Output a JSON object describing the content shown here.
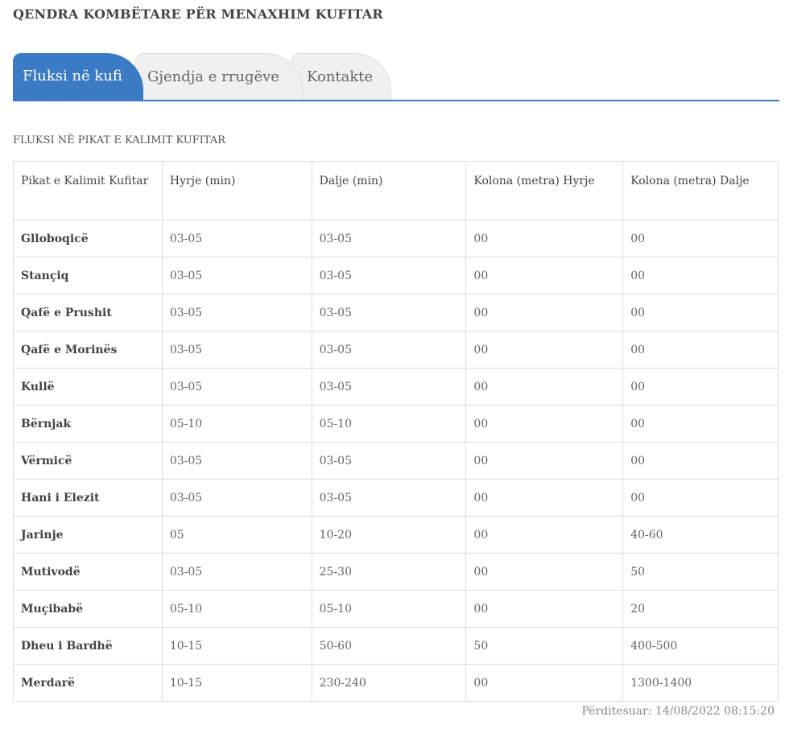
{
  "header": {
    "title": "QENDRA KOMBËTARE PËR MENAXHIM KUFITAR"
  },
  "tabs": [
    {
      "label": "Fluksi në kufi",
      "active": true
    },
    {
      "label": "Gjendja e rrugëve",
      "active": false
    },
    {
      "label": "Kontakte",
      "active": false
    }
  ],
  "section": {
    "title": "FLUKSI NË PIKAT E KALIMIT KUFITAR"
  },
  "table": {
    "columns": [
      "Pikat e Kalimit Kufitar",
      "Hyrje (min)",
      "Dalje (min)",
      "Kolona (metra) Hyrje",
      "Kolona (metra) Dalje"
    ],
    "rows": [
      [
        "Glloboqicë",
        "03-05",
        "03-05",
        "00",
        "00"
      ],
      [
        "Stançiq",
        "03-05",
        "03-05",
        "00",
        "00"
      ],
      [
        "Qafë e Prushit",
        "03-05",
        "03-05",
        "00",
        "00"
      ],
      [
        "Qafë e Morinës",
        "03-05",
        "03-05",
        "00",
        "00"
      ],
      [
        "Kullë",
        "03-05",
        "03-05",
        "00",
        "00"
      ],
      [
        "Bërnjak",
        "05-10",
        "05-10",
        "00",
        "00"
      ],
      [
        "Vërmicë",
        "03-05",
        "03-05",
        "00",
        "00"
      ],
      [
        "Hani i Elezit",
        "03-05",
        "03-05",
        "00",
        "00"
      ],
      [
        "Jarinje",
        "05",
        "10-20",
        "00",
        "40-60"
      ],
      [
        "Mutivodë",
        "03-05",
        "25-30",
        "00",
        "50"
      ],
      [
        "Muçibabë",
        "05-10",
        "05-10",
        "00",
        "20"
      ],
      [
        "Dheu i Bardhë",
        "10-15",
        "50-60",
        "50",
        "400-500"
      ],
      [
        "Merdarë",
        "10-15",
        "230-240",
        "00",
        "1300-1400"
      ]
    ]
  },
  "footer": {
    "updated": "Përditesuar: 14/08/2022 08:15:20"
  },
  "colors": {
    "accent": "#3b7bc6",
    "tab_inactive": "#f0f0f0",
    "border": "#dcdcdc"
  }
}
